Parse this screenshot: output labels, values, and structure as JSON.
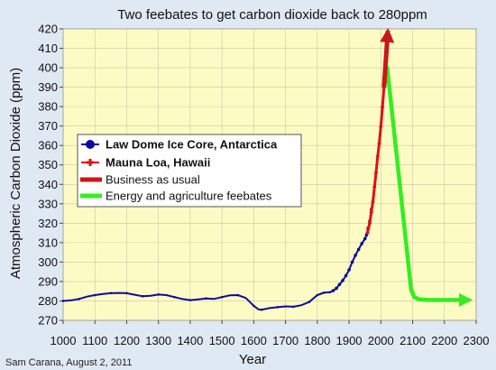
{
  "chart_data": {
    "type": "line",
    "title": "Two feebates to get carbon dioxide back to 280ppm",
    "xlabel": "Year",
    "ylabel": "Atmospheric Carbon Dioxide (ppm)",
    "xlim": [
      1000,
      2300
    ],
    "ylim": [
      270,
      420
    ],
    "xticks": [
      1000,
      1100,
      1200,
      1300,
      1400,
      1500,
      1600,
      1700,
      1800,
      1900,
      2000,
      2100,
      2200,
      2300
    ],
    "yticks": [
      270,
      280,
      290,
      300,
      310,
      320,
      330,
      340,
      350,
      360,
      370,
      380,
      390,
      400,
      410,
      420
    ],
    "grid": true,
    "legend_position": "left",
    "credit": "Sam Carana, August 2, 2011",
    "colors": {
      "plot_background": "#fdfbc4",
      "grid": "#c8c8a8",
      "law_dome": "#0a0aa0",
      "mauna_loa": "#e01010",
      "business_as_usual": "#c81818",
      "feebates": "#33ee22"
    },
    "series": [
      {
        "name": "Law Dome Ice Core, Antarctica",
        "style": "dots-line",
        "color": "#0a0aa0",
        "x": [
          1000,
          1025,
          1050,
          1075,
          1100,
          1125,
          1150,
          1175,
          1200,
          1225,
          1250,
          1275,
          1300,
          1325,
          1350,
          1375,
          1400,
          1425,
          1450,
          1475,
          1500,
          1525,
          1550,
          1575,
          1600,
          1615,
          1625,
          1650,
          1675,
          1700,
          1725,
          1750,
          1775,
          1800,
          1820,
          1840,
          1850,
          1860,
          1870,
          1880,
          1890,
          1900,
          1910,
          1920,
          1930,
          1940,
          1950,
          1955,
          1960,
          1965,
          1970
        ],
        "y": [
          280,
          280.3,
          281,
          282.2,
          283,
          283.6,
          284,
          284.1,
          284,
          283.2,
          282.4,
          282.7,
          283.3,
          283,
          282,
          281,
          280.4,
          280.8,
          281.3,
          281,
          282,
          282.9,
          283,
          281.5,
          277.5,
          275.6,
          275.5,
          276.3,
          276.8,
          277.2,
          277,
          277.8,
          279.5,
          283,
          284.2,
          284.5,
          285.3,
          286.5,
          288.5,
          290.5,
          293,
          296,
          300,
          303.5,
          306.5,
          309.5,
          312,
          314,
          317.5,
          321,
          327
        ]
      },
      {
        "name": "Mauna Loa, Hawaii",
        "style": "crosses-line",
        "color": "#e01010",
        "x": [
          1958,
          1960,
          1965,
          1970,
          1975,
          1980,
          1985,
          1990,
          1995,
          2000,
          2005,
          2010
        ],
        "y": [
          315,
          316.9,
          320,
          325.7,
          331,
          338.7,
          346,
          354.4,
          361,
          369.7,
          379.8,
          389.9
        ]
      },
      {
        "name": "Business as usual",
        "style": "arrow",
        "color": "#c81818",
        "x": [
          2010,
          2022
        ],
        "y": [
          390,
          419
        ]
      },
      {
        "name": "Energy and agriculture feebates",
        "style": "arrow",
        "color": "#33ee22",
        "x": [
          2010,
          2020,
          2095,
          2105,
          2120,
          2150,
          2280
        ],
        "y": [
          390,
          400,
          286,
          282,
          280.8,
          280.5,
          280.5
        ]
      }
    ]
  }
}
